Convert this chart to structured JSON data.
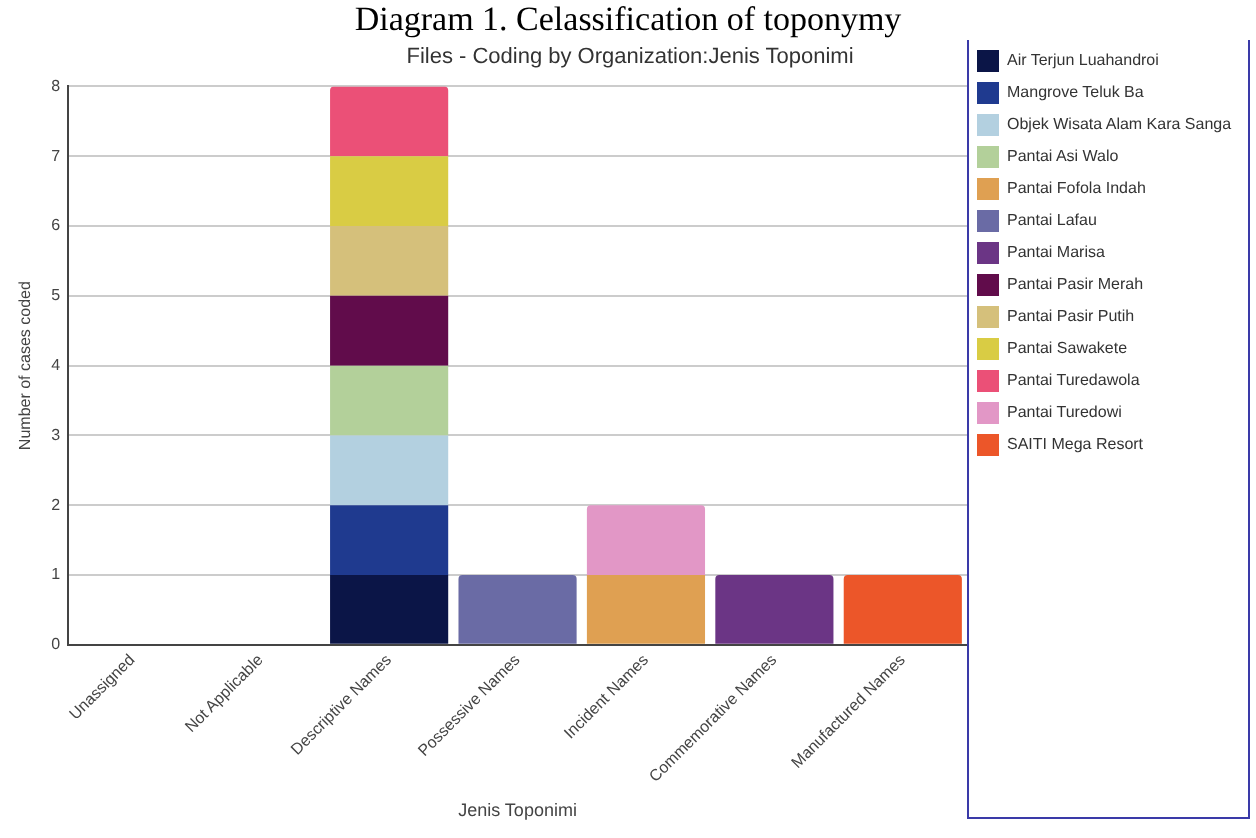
{
  "chart_data": {
    "type": "bar",
    "title": "Diagram 1. Celassification of toponymy",
    "subtitle": "Files - Coding by Organization:Jenis Toponimi",
    "xlabel": "Jenis Toponimi",
    "ylabel": "Number of cases coded",
    "categories": [
      "Unassigned",
      "Not Applicable",
      "Descriptive Names",
      "Possessive Names",
      "Incident Names",
      "Commemorative Names",
      "Manufactured Names"
    ],
    "stacked": true,
    "ylim": [
      0,
      8
    ],
    "yticks": [
      0,
      1,
      2,
      3,
      4,
      5,
      6,
      7,
      8
    ],
    "grid": "y",
    "legend": "right",
    "series": [
      {
        "name": "Air Terjun Luahandroi",
        "color": "#0b1547",
        "values": [
          null,
          null,
          1,
          null,
          null,
          null,
          null
        ]
      },
      {
        "name": "Mangrove Teluk Ba",
        "color": "#1f3a8f",
        "values": [
          null,
          null,
          1,
          null,
          null,
          null,
          null
        ]
      },
      {
        "name": "Objek Wisata Alam Kara Sanga",
        "color": "#b3d0e0",
        "values": [
          null,
          null,
          1,
          null,
          null,
          null,
          null
        ]
      },
      {
        "name": "Pantai Asi Walo",
        "color": "#b3d09a",
        "values": [
          null,
          null,
          1,
          null,
          null,
          null,
          null
        ]
      },
      {
        "name": "Pantai Fofola Indah",
        "color": "#dfa052",
        "values": [
          null,
          null,
          null,
          null,
          1,
          null,
          null
        ]
      },
      {
        "name": "Pantai Lafau",
        "color": "#6a6ba5",
        "values": [
          null,
          null,
          null,
          1,
          null,
          null,
          null
        ]
      },
      {
        "name": "Pantai Marisa",
        "color": "#6b3585",
        "values": [
          null,
          null,
          null,
          null,
          null,
          1,
          null
        ]
      },
      {
        "name": "Pantai Pasir Merah",
        "color": "#610c4b",
        "values": [
          null,
          null,
          1,
          null,
          null,
          null,
          null
        ]
      },
      {
        "name": "Pantai Pasir Putih",
        "color": "#d5c07b",
        "values": [
          null,
          null,
          1,
          null,
          null,
          null,
          null
        ]
      },
      {
        "name": "Pantai Sawakete",
        "color": "#d9cc44",
        "values": [
          null,
          null,
          1,
          null,
          null,
          null,
          null
        ]
      },
      {
        "name": "Pantai Turedawola",
        "color": "#eb5077",
        "values": [
          null,
          null,
          1,
          null,
          null,
          null,
          null
        ]
      },
      {
        "name": "Pantai Turedowi",
        "color": "#e297c6",
        "values": [
          null,
          null,
          null,
          null,
          1,
          null,
          null
        ]
      },
      {
        "name": "SAITI Mega Resort",
        "color": "#ec5629",
        "values": [
          null,
          null,
          null,
          null,
          null,
          null,
          1
        ]
      }
    ]
  }
}
